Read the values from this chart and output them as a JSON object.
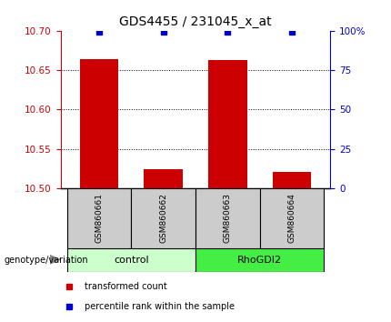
{
  "title": "GDS4455 / 231045_x_at",
  "samples": [
    "GSM860661",
    "GSM860662",
    "GSM860663",
    "GSM860664"
  ],
  "bar_values": [
    10.664,
    10.524,
    10.663,
    10.521
  ],
  "bar_baseline": 10.5,
  "bar_color": "#cc0000",
  "percentile_values": [
    99,
    99,
    99,
    99
  ],
  "percentile_color": "#0000cc",
  "ylim_left": [
    10.5,
    10.7
  ],
  "ylim_right": [
    0,
    100
  ],
  "yticks_left": [
    10.5,
    10.55,
    10.6,
    10.65,
    10.7
  ],
  "yticks_right": [
    0,
    25,
    50,
    75,
    100
  ],
  "ytick_labels_right": [
    "0",
    "25",
    "50",
    "75",
    "100%"
  ],
  "grid_values": [
    10.55,
    10.6,
    10.65
  ],
  "groups": [
    {
      "label": "control",
      "samples": [
        0,
        1
      ],
      "color": "#ccffcc"
    },
    {
      "label": "RhoGDI2",
      "samples": [
        2,
        3
      ],
      "color": "#44ee44"
    }
  ],
  "left_axis_color": "#cc0000",
  "right_axis_color": "#0000cc",
  "background_plot": "#ffffff",
  "background_label": "#cccccc",
  "legend_items": [
    {
      "label": "transformed count",
      "color": "#cc0000"
    },
    {
      "label": "percentile rank within the sample",
      "color": "#0000cc"
    }
  ],
  "bar_width": 0.6,
  "xlim": [
    -0.6,
    3.6
  ]
}
